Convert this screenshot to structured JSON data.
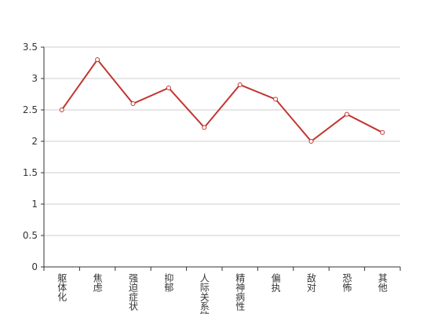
{
  "chart_data": {
    "type": "line",
    "categories": [
      "躯体化",
      "焦虑",
      "强迫症状",
      "抑郁",
      "人际关系敏感",
      "精神病性",
      "偏执",
      "敌对",
      "恐怖",
      "其他"
    ],
    "values": [
      2.5,
      3.3,
      2.6,
      2.85,
      2.22,
      2.9,
      2.67,
      2.0,
      2.43,
      2.14
    ],
    "color": "#c23531",
    "ylim": [
      0,
      3.5
    ],
    "yticks": [
      0,
      0.5,
      1,
      1.5,
      2,
      2.5,
      3,
      3.5
    ],
    "grid": true
  }
}
